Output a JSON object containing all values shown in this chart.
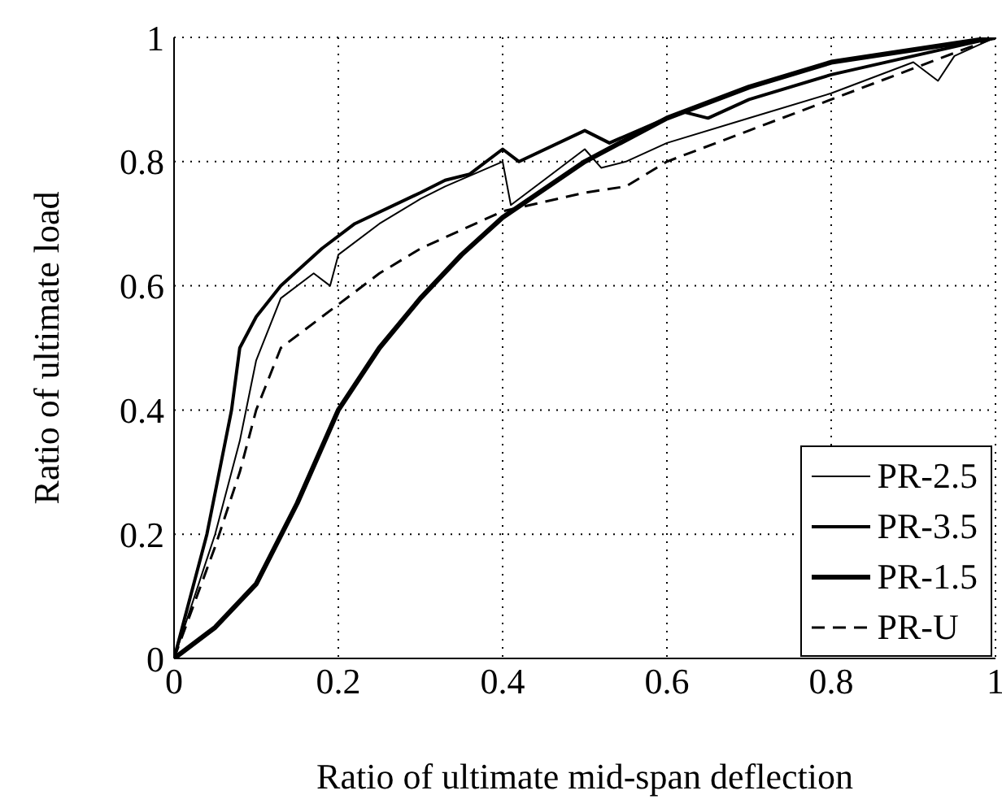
{
  "chart_data": {
    "type": "line",
    "xlabel": "Ratio of ultimate mid-span deflection",
    "ylabel": "Ratio of ultimate load",
    "xlim": [
      0,
      1
    ],
    "ylim": [
      0,
      1
    ],
    "xticks": [
      0,
      0.2,
      0.4,
      0.6,
      0.8,
      1
    ],
    "yticks": [
      0,
      0.2,
      0.4,
      0.6,
      0.8,
      1
    ],
    "grid": true,
    "legend": "bottom right",
    "marker": "none",
    "series": [
      {
        "name": "PR-2.5",
        "color": "#000000",
        "line_style": "solid",
        "x": [
          0,
          0.05,
          0.08,
          0.1,
          0.13,
          0.17,
          0.19,
          0.2,
          0.25,
          0.3,
          0.33,
          0.4,
          0.41,
          0.45,
          0.5,
          0.52,
          0.55,
          0.6,
          0.7,
          0.8,
          0.9,
          0.93,
          0.95,
          1
        ],
        "values": [
          0,
          0.2,
          0.35,
          0.48,
          0.58,
          0.62,
          0.6,
          0.65,
          0.7,
          0.74,
          0.76,
          0.8,
          0.73,
          0.77,
          0.82,
          0.79,
          0.8,
          0.83,
          0.87,
          0.91,
          0.96,
          0.93,
          0.97,
          1
        ]
      },
      {
        "name": "PR-3.5",
        "color": "#000000",
        "line_style": "solid",
        "x": [
          0,
          0.04,
          0.07,
          0.08,
          0.1,
          0.13,
          0.18,
          0.22,
          0.3,
          0.33,
          0.36,
          0.4,
          0.42,
          0.5,
          0.53,
          0.6,
          0.62,
          0.65,
          0.7,
          0.8,
          0.9,
          1
        ],
        "values": [
          0,
          0.2,
          0.4,
          0.5,
          0.55,
          0.6,
          0.66,
          0.7,
          0.75,
          0.77,
          0.78,
          0.82,
          0.8,
          0.85,
          0.83,
          0.87,
          0.88,
          0.87,
          0.9,
          0.94,
          0.97,
          1
        ]
      },
      {
        "name": "PR-1.5",
        "color": "#000000",
        "line_style": "solid",
        "x": [
          0,
          0.05,
          0.1,
          0.15,
          0.2,
          0.25,
          0.3,
          0.35,
          0.4,
          0.5,
          0.6,
          0.7,
          0.8,
          0.9,
          1
        ],
        "values": [
          0,
          0.05,
          0.12,
          0.25,
          0.4,
          0.5,
          0.58,
          0.65,
          0.71,
          0.8,
          0.87,
          0.92,
          0.96,
          0.98,
          1
        ]
      },
      {
        "name": "PR-U",
        "color": "#000000",
        "line_style": "dashed",
        "x": [
          0,
          0.05,
          0.08,
          0.1,
          0.13,
          0.2,
          0.25,
          0.3,
          0.4,
          0.5,
          0.55,
          0.6,
          0.7,
          0.8,
          0.9,
          1
        ],
        "values": [
          0,
          0.18,
          0.3,
          0.4,
          0.5,
          0.57,
          0.62,
          0.66,
          0.72,
          0.75,
          0.76,
          0.8,
          0.85,
          0.9,
          0.95,
          1
        ]
      }
    ]
  }
}
